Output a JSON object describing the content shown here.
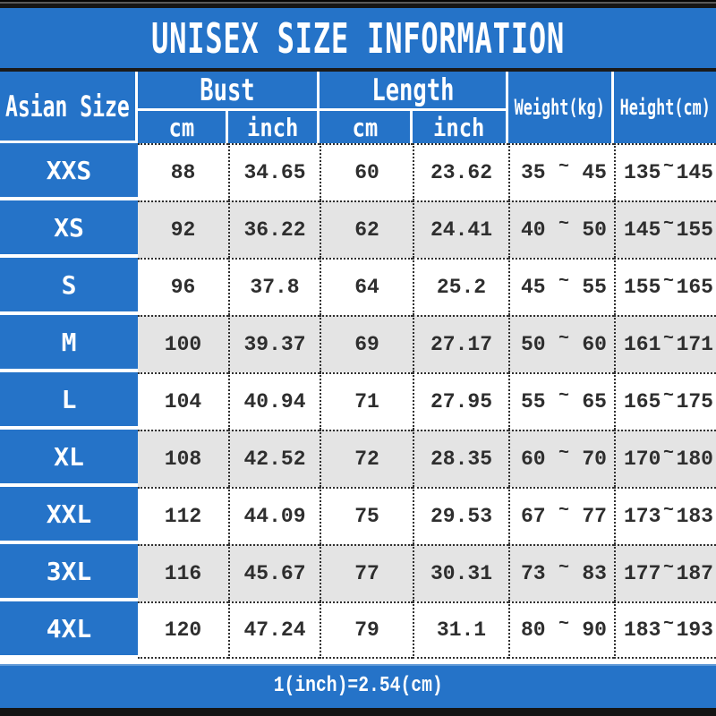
{
  "title": "UNISEX SIZE INFORMATION",
  "footer": "1(inch)=2.54(cm)",
  "colors": {
    "blue": "#2573c8",
    "row_grey": "#e4e4e4",
    "dotted_border": "#303030",
    "strip_black": "#141414"
  },
  "header": {
    "size_label": "Asian Size",
    "bust_label": "Bust",
    "length_label": "Length",
    "weight_label": "Weight(kg)",
    "height_label": "Height(cm)",
    "cm_label": "cm",
    "inch_label": "inch",
    "tilde": "~"
  },
  "chart_data": {
    "type": "table",
    "title": "UNISEX SIZE INFORMATION",
    "footnote": "1(inch)=2.54(cm)",
    "column_groups": [
      "Asian Size",
      "Bust",
      "Length",
      "Weight(kg)",
      "Height(cm)"
    ],
    "columns": [
      "Asian Size",
      "Bust cm",
      "Bust inch",
      "Length cm",
      "Length inch",
      "Weight(kg) min",
      "Weight(kg) max",
      "Height(cm) min",
      "Height(cm) max"
    ],
    "rows": [
      {
        "size": "XXS",
        "bust_cm": "88",
        "bust_inch": "34.65",
        "length_cm": "60",
        "length_inch": "23.62",
        "weight_min": "35",
        "weight_max": "45",
        "height_min": "135",
        "height_max": "145",
        "shaded": false
      },
      {
        "size": "XS",
        "bust_cm": "92",
        "bust_inch": "36.22",
        "length_cm": "62",
        "length_inch": "24.41",
        "weight_min": "40",
        "weight_max": "50",
        "height_min": "145",
        "height_max": "155",
        "shaded": true
      },
      {
        "size": "S",
        "bust_cm": "96",
        "bust_inch": "37.8",
        "length_cm": "64",
        "length_inch": "25.2",
        "weight_min": "45",
        "weight_max": "55",
        "height_min": "155",
        "height_max": "165",
        "shaded": false
      },
      {
        "size": "M",
        "bust_cm": "100",
        "bust_inch": "39.37",
        "length_cm": "69",
        "length_inch": "27.17",
        "weight_min": "50",
        "weight_max": "60",
        "height_min": "161",
        "height_max": "171",
        "shaded": true
      },
      {
        "size": "L",
        "bust_cm": "104",
        "bust_inch": "40.94",
        "length_cm": "71",
        "length_inch": "27.95",
        "weight_min": "55",
        "weight_max": "65",
        "height_min": "165",
        "height_max": "175",
        "shaded": false
      },
      {
        "size": "XL",
        "bust_cm": "108",
        "bust_inch": "42.52",
        "length_cm": "72",
        "length_inch": "28.35",
        "weight_min": "60",
        "weight_max": "70",
        "height_min": "170",
        "height_max": "180",
        "shaded": true
      },
      {
        "size": "XXL",
        "bust_cm": "112",
        "bust_inch": "44.09",
        "length_cm": "75",
        "length_inch": "29.53",
        "weight_min": "67",
        "weight_max": "77",
        "height_min": "173",
        "height_max": "183",
        "shaded": false
      },
      {
        "size": "3XL",
        "bust_cm": "116",
        "bust_inch": "45.67",
        "length_cm": "77",
        "length_inch": "30.31",
        "weight_min": "73",
        "weight_max": "83",
        "height_min": "177",
        "height_max": "187",
        "shaded": true
      },
      {
        "size": "4XL",
        "bust_cm": "120",
        "bust_inch": "47.24",
        "length_cm": "79",
        "length_inch": "31.1",
        "weight_min": "80",
        "weight_max": "90",
        "height_min": "183",
        "height_max": "193",
        "shaded": false
      }
    ]
  }
}
